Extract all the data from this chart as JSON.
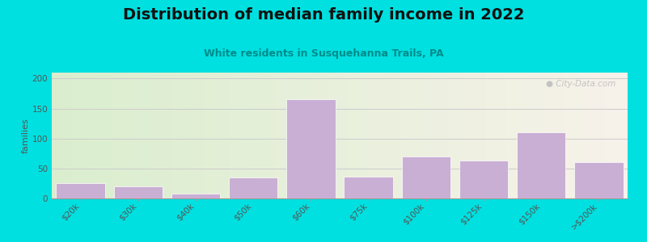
{
  "title": "Distribution of median family income in 2022",
  "subtitle": "White residents in Susquehanna Trails, PA",
  "categories": [
    "$20k",
    "$30k",
    "$40k",
    "$50k",
    "$60k",
    "$75k",
    "$100k",
    "$125k",
    "$150k",
    ">$200k"
  ],
  "values": [
    25,
    20,
    8,
    35,
    165,
    37,
    70,
    63,
    110,
    60
  ],
  "bar_color": "#c9afd4",
  "background_outer": "#00e0e0",
  "plot_bg_left": "#daeece",
  "plot_bg_right": "#f7f2ea",
  "title_color": "#111111",
  "subtitle_color": "#008b8b",
  "ylabel": "families",
  "ylim": [
    0,
    210
  ],
  "yticks": [
    0,
    50,
    100,
    150,
    200
  ],
  "grid_color": "#cccccc",
  "watermark_text": "● City-Data.com",
  "watermark_color": "#bbbbbb",
  "title_fontsize": 14,
  "subtitle_fontsize": 9,
  "axis_label_fontsize": 8,
  "tick_fontsize": 7.5
}
